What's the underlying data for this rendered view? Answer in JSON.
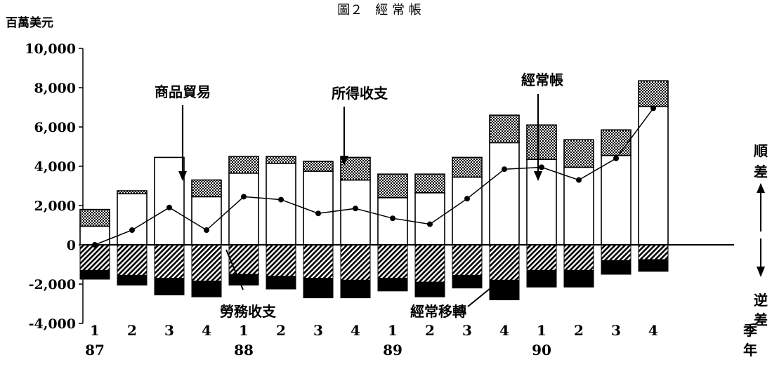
{
  "chart_data": {
    "type": "bar",
    "title": "圖２　經 常 帳",
    "y_unit": "百萬美元",
    "ylim": [
      -4000,
      10000
    ],
    "y_ticks": [
      10000,
      8000,
      6000,
      4000,
      2000,
      0,
      -2000,
      -4000
    ],
    "y_tick_labels": [
      "10,000",
      "8,000",
      "6,000",
      "4,000",
      "2,000",
      "0",
      "-2,000",
      "-4,000"
    ],
    "categories": [
      "1",
      "2",
      "3",
      "4",
      "1",
      "2",
      "3",
      "4",
      "1",
      "2",
      "3",
      "4",
      "1",
      "2",
      "3",
      "4"
    ],
    "years": [
      {
        "label": "87",
        "start": 0
      },
      {
        "label": "88",
        "start": 4
      },
      {
        "label": "89",
        "start": 8
      },
      {
        "label": "90",
        "start": 12
      }
    ],
    "x_unit": [
      "季",
      "年"
    ],
    "series": [
      {
        "name": "商品貿易",
        "values": [
          950,
          2600,
          4450,
          2450,
          3650,
          4150,
          3750,
          3300,
          2400,
          2650,
          3450,
          5200,
          4350,
          3950,
          4550,
          7050
        ]
      },
      {
        "name": "所得收支",
        "values": [
          850,
          150,
          0,
          850,
          850,
          350,
          500,
          1150,
          1200,
          950,
          1000,
          1400,
          1750,
          1400,
          1300,
          1300
        ]
      },
      {
        "name": "勞務收支",
        "values": [
          -1300,
          -1550,
          -1700,
          -1850,
          -1500,
          -1600,
          -1700,
          -1800,
          -1700,
          -1900,
          -1550,
          -1800,
          -1300,
          -1300,
          -800,
          -750
        ]
      },
      {
        "name": "經常移轉",
        "values": [
          -450,
          -500,
          -850,
          -800,
          -550,
          -650,
          -1000,
          -900,
          -650,
          -750,
          -650,
          -1000,
          -850,
          -850,
          -700,
          -600
        ]
      },
      {
        "name": "經常帳",
        "values": [
          0,
          750,
          1900,
          750,
          2450,
          2300,
          1600,
          1850,
          1350,
          1050,
          2350,
          3850,
          3950,
          3300,
          4400,
          6950
        ]
      }
    ],
    "annotations": [
      "商品貿易",
      "所得收支",
      "經常帳",
      "勞務收支",
      "經常移轉"
    ],
    "side_labels": {
      "top": [
        "順",
        "差"
      ],
      "bottom": [
        "逆",
        "差"
      ]
    }
  }
}
